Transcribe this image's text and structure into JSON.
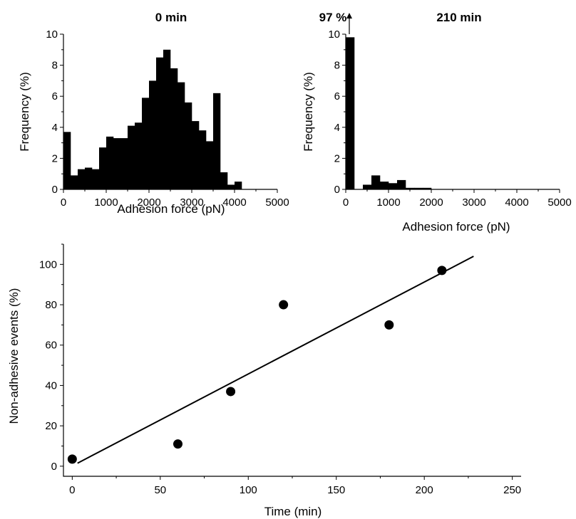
{
  "chart_data": [
    {
      "type": "bar",
      "title": "0 min",
      "xlabel": "Adhesion force (pN)",
      "ylabel": "Frequency (%)",
      "xlim": [
        0,
        5000
      ],
      "ylim": [
        0,
        10
      ],
      "xticks": [
        0,
        1000,
        2000,
        3000,
        4000,
        5000
      ],
      "yticks": [
        0,
        2,
        4,
        6,
        8,
        10
      ],
      "bin_width": 166.7,
      "bin_starts": [
        0,
        166.7,
        333.3,
        500,
        666.7,
        833.3,
        1000,
        1166.7,
        1333.3,
        1500,
        1666.7,
        1833.3,
        2000,
        2166.7,
        2333.3,
        2500,
        2666.7,
        2833.3,
        3000,
        3166.7,
        3333.3,
        3500,
        3666.7,
        3833.3,
        4000,
        4166.7,
        4333.3,
        4500,
        4666.7,
        4833.3
      ],
      "values": [
        3.7,
        0.9,
        1.3,
        1.4,
        1.3,
        2.7,
        3.4,
        3.3,
        3.3,
        4.1,
        4.3,
        5.9,
        7.0,
        8.5,
        9.0,
        7.8,
        6.9,
        5.6,
        4.4,
        3.8,
        3.1,
        6.2,
        1.1,
        0.3,
        0.5,
        0.0,
        0.0,
        0.0,
        0.0,
        0.0
      ]
    },
    {
      "type": "bar",
      "title": "210 min",
      "annotation": "97 %",
      "xlabel": "Adhesion force (pN)",
      "ylabel": "Frequency (%)",
      "xlim": [
        0,
        5000
      ],
      "ylim": [
        0,
        10
      ],
      "xticks": [
        0,
        1000,
        2000,
        3000,
        4000,
        5000
      ],
      "yticks": [
        0,
        2,
        4,
        6,
        8,
        10
      ],
      "bin_width": 200,
      "bin_starts": [
        0,
        200,
        400,
        600,
        800,
        1000,
        1200,
        1400,
        1600,
        1800
      ],
      "values": [
        9.8,
        0.0,
        0.3,
        0.9,
        0.5,
        0.4,
        0.6,
        0.1,
        0.1,
        0.1
      ],
      "note": "first bar truncated; actual value 97 %"
    },
    {
      "type": "scatter",
      "xlabel": "Time (min)",
      "ylabel": "Non-adhesive events (%)",
      "xlim": [
        -5,
        255
      ],
      "ylim": [
        -5,
        110
      ],
      "xticks": [
        0,
        50,
        100,
        150,
        200,
        250
      ],
      "yticks": [
        0,
        20,
        40,
        60,
        80,
        100
      ],
      "x": [
        0,
        60,
        90,
        120,
        180,
        210
      ],
      "y": [
        3.5,
        11,
        37,
        80,
        70,
        97
      ],
      "fit_line": {
        "x": [
          3,
          228
        ],
        "y": [
          1.5,
          104
        ]
      }
    }
  ]
}
